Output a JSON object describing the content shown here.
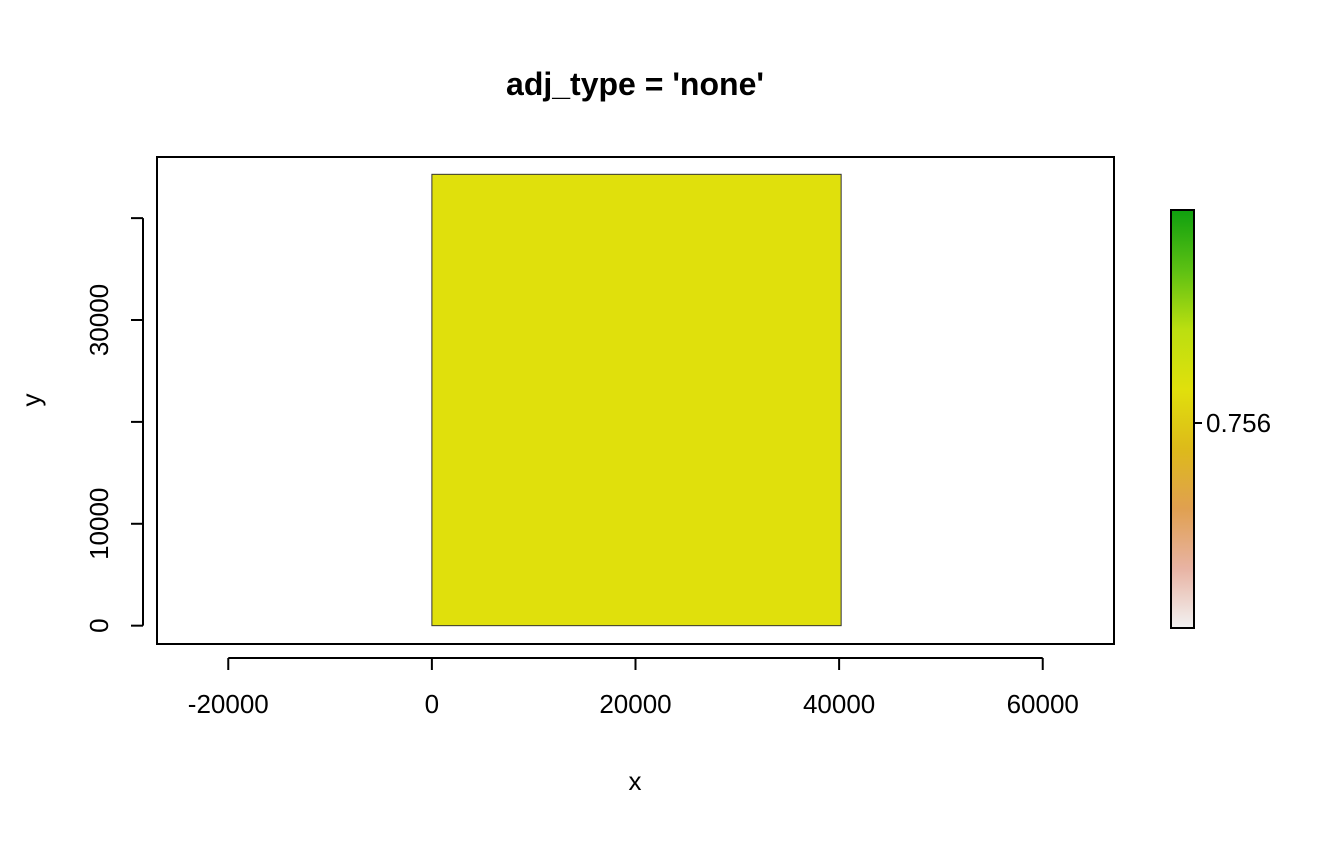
{
  "chart_data": {
    "type": "heatmap",
    "title": "adj_type = 'none'",
    "xlabel": "x",
    "ylabel": "y",
    "xlim": [
      -27000,
      67000
    ],
    "ylim": [
      -1800,
      46000
    ],
    "x_ticks": [
      -20000,
      0,
      20000,
      40000,
      60000
    ],
    "y_ticks": [
      0,
      10000,
      20000,
      30000,
      40000
    ],
    "x_tick_labels": [
      "-20000",
      "0",
      "20000",
      "40000",
      "60000"
    ],
    "y_tick_labels": [
      "0",
      "10000",
      "",
      "30000",
      ""
    ],
    "cells": [
      {
        "x_range": [
          0,
          40200
        ],
        "y_range": [
          0,
          44300
        ],
        "value": 0.756,
        "color": "#E0E00C"
      }
    ],
    "legend": {
      "placement": "right",
      "tick_values": [
        0.756
      ],
      "tick_labels": [
        "0.756"
      ],
      "gradient_colors": [
        "#F2F2F2",
        "#E8B3A3",
        "#E0A050",
        "#DDBA1A",
        "#E0E00C",
        "#BBDF10",
        "#5CC013",
        "#0FA00F"
      ]
    },
    "grid": false
  }
}
